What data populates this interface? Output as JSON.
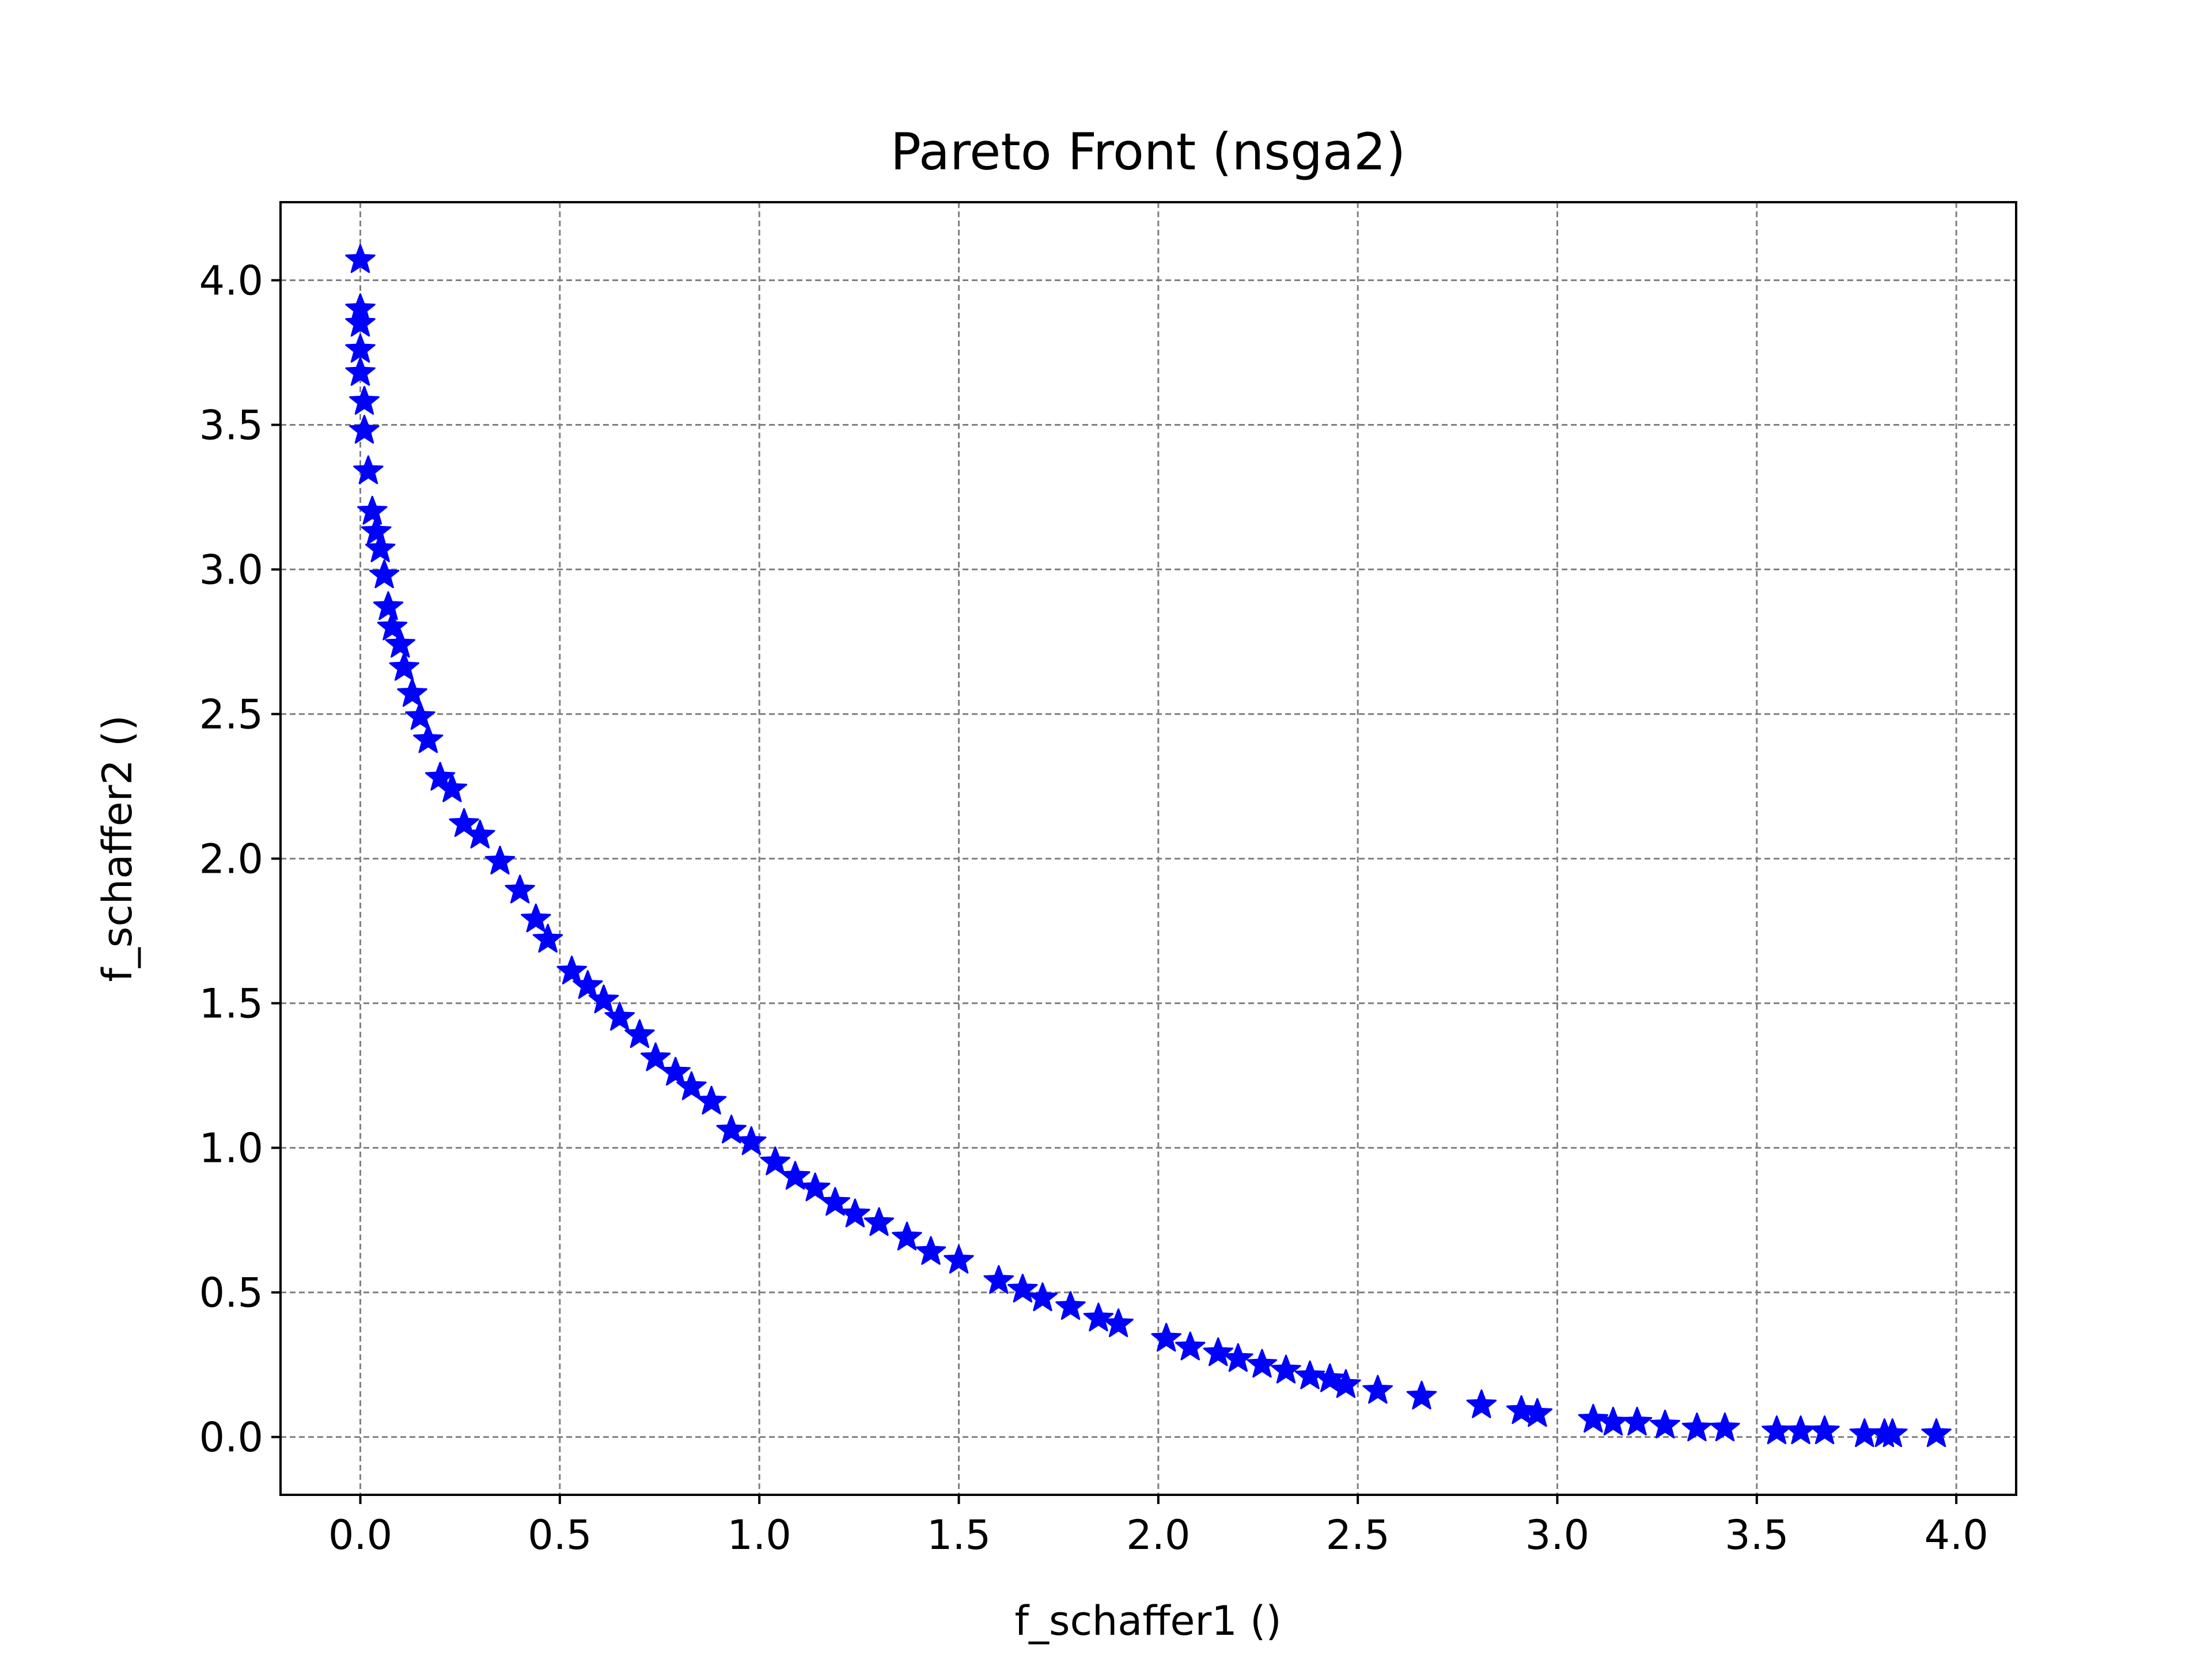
{
  "chart_data": {
    "type": "scatter",
    "title": "Pareto Front (nsga2)",
    "xlabel": "f_schaffer1 ()",
    "ylabel": "f_schaffer2 ()",
    "xlim": [
      -0.2,
      4.15
    ],
    "ylim": [
      -0.2,
      4.27
    ],
    "xticks": [
      "0.0",
      "0.5",
      "1.0",
      "1.5",
      "2.0",
      "2.5",
      "3.0",
      "3.5",
      "4.0"
    ],
    "yticks": [
      "0.0",
      "0.5",
      "1.0",
      "1.5",
      "2.0",
      "2.5",
      "3.0",
      "3.5",
      "4.0"
    ],
    "grid": true,
    "grid_style": "dashed",
    "marker": "star",
    "color": "#0000ff",
    "series": [
      {
        "x": [
          0.0,
          0.0,
          0.0,
          0.0,
          0.0,
          0.01,
          0.01,
          0.02,
          0.03,
          0.04,
          0.05,
          0.06,
          0.07,
          0.08,
          0.1,
          0.11,
          0.13,
          0.15,
          0.17,
          0.2,
          0.23,
          0.26,
          0.3,
          0.35,
          0.4,
          0.44,
          0.47,
          0.53,
          0.57,
          0.61,
          0.65,
          0.7,
          0.74,
          0.79,
          0.83,
          0.88,
          0.93,
          0.98,
          1.04,
          1.09,
          1.14,
          1.19,
          1.24,
          1.3,
          1.37,
          1.43,
          1.5,
          1.6,
          1.66,
          1.71,
          1.78,
          1.85,
          1.9,
          2.02,
          2.08,
          2.15,
          2.2,
          2.26,
          2.32,
          2.38,
          2.43,
          2.47,
          2.55,
          2.66,
          2.81,
          2.91,
          2.95,
          3.09,
          3.14,
          3.2,
          3.27,
          3.35,
          3.42,
          3.55,
          3.61,
          3.67,
          3.77,
          3.82,
          3.84,
          3.95
        ],
        "y": [
          4.07,
          3.9,
          3.85,
          3.76,
          3.68,
          3.58,
          3.48,
          3.34,
          3.2,
          3.13,
          3.07,
          2.98,
          2.87,
          2.8,
          2.74,
          2.66,
          2.57,
          2.49,
          2.41,
          2.28,
          2.24,
          2.12,
          2.08,
          1.99,
          1.89,
          1.79,
          1.72,
          1.61,
          1.56,
          1.51,
          1.45,
          1.39,
          1.31,
          1.26,
          1.21,
          1.16,
          1.06,
          1.02,
          0.95,
          0.9,
          0.86,
          0.81,
          0.77,
          0.74,
          0.69,
          0.64,
          0.61,
          0.54,
          0.51,
          0.48,
          0.45,
          0.41,
          0.39,
          0.34,
          0.31,
          0.29,
          0.27,
          0.25,
          0.23,
          0.21,
          0.2,
          0.18,
          0.16,
          0.14,
          0.11,
          0.09,
          0.08,
          0.06,
          0.05,
          0.05,
          0.04,
          0.03,
          0.03,
          0.02,
          0.02,
          0.02,
          0.01,
          0.01,
          0.01,
          0.01
        ]
      }
    ]
  }
}
